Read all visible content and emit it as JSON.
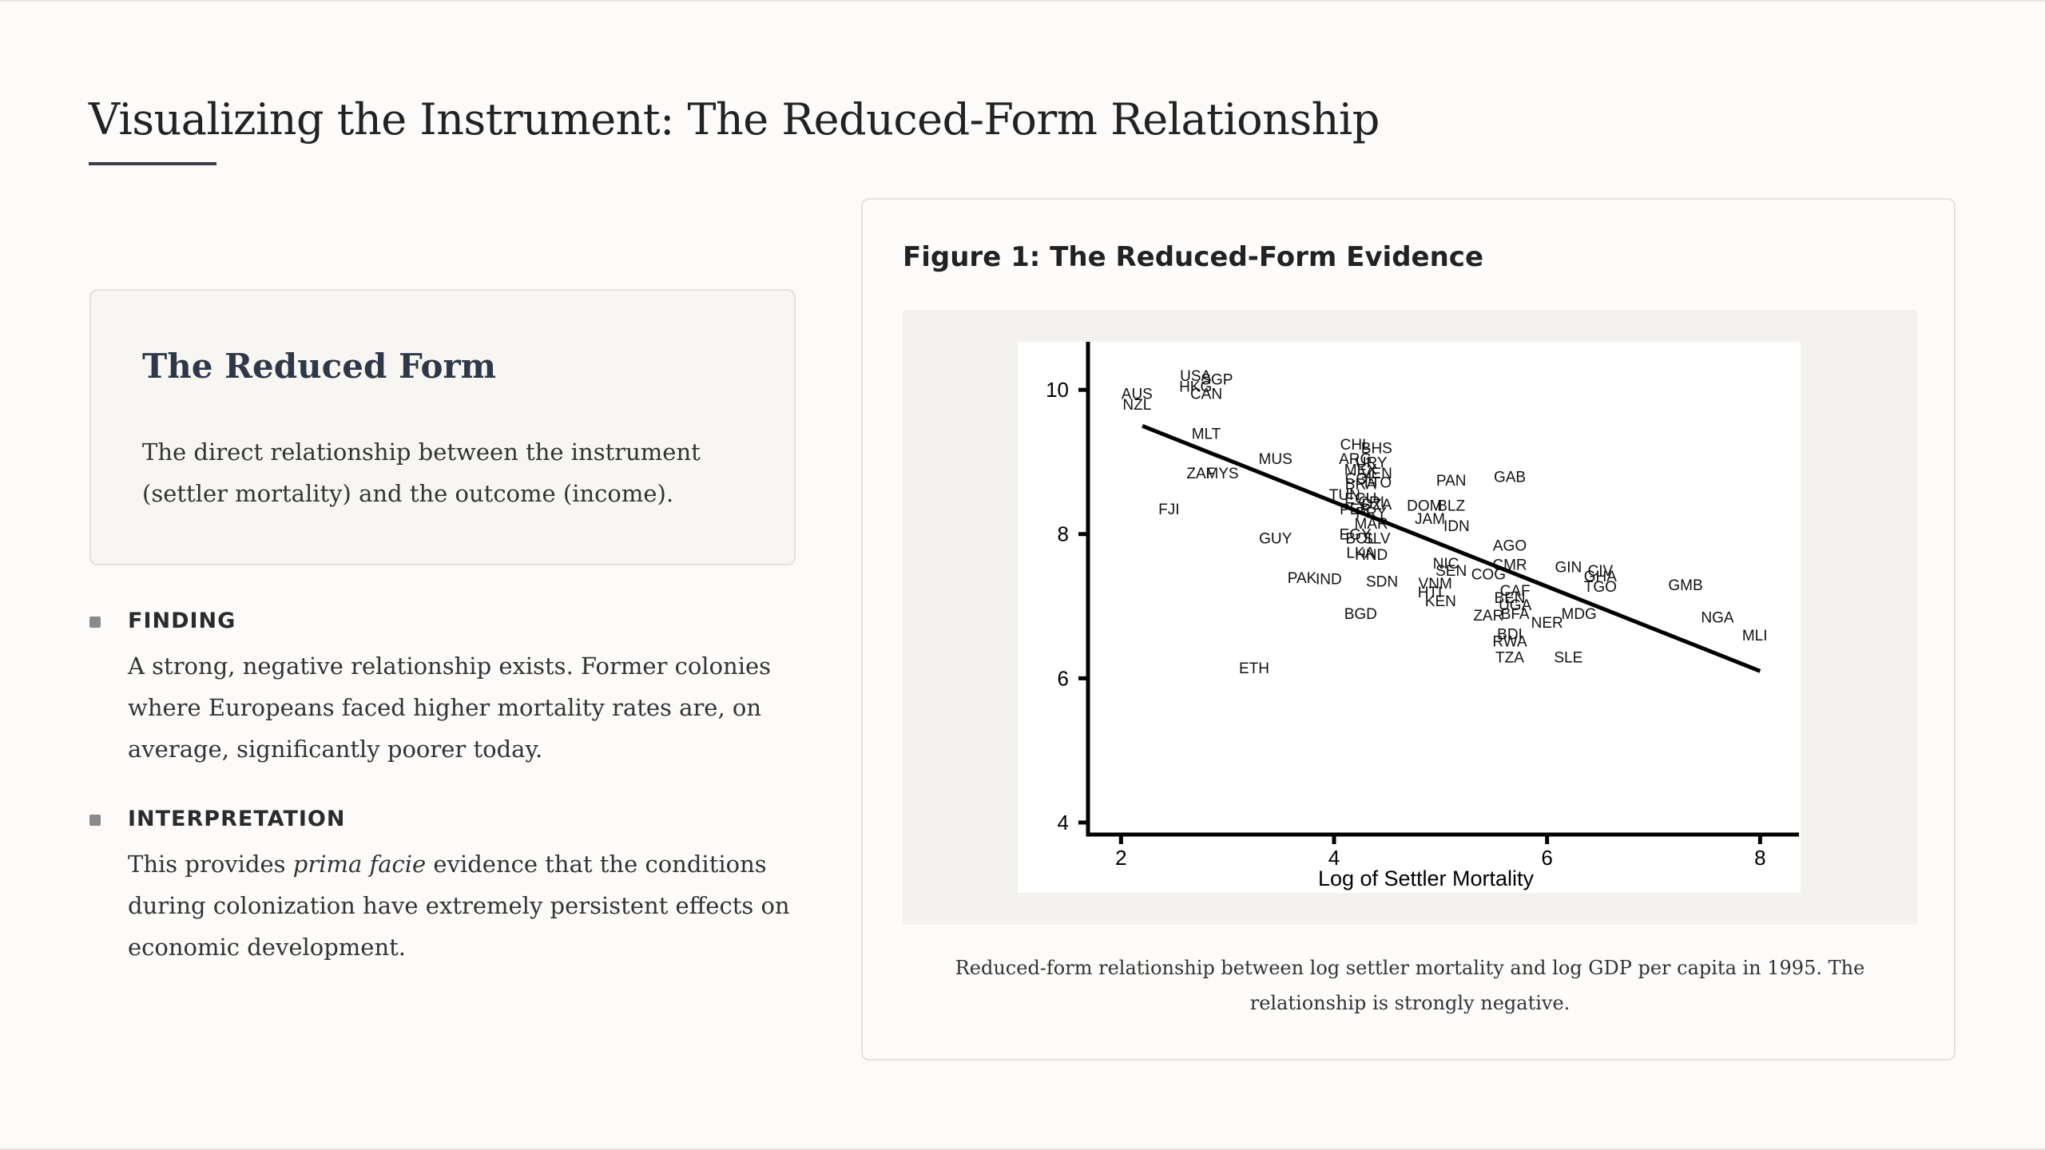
{
  "page": {
    "title": "Visualizing the Instrument: The Reduced-Form Relationship"
  },
  "reduced_form_card": {
    "heading": "The Reduced Form",
    "body": "The direct relationship between the instrument (settler mortality) and the outcome (income)."
  },
  "findings": [
    {
      "heading": "FINDING",
      "body": "A strong, negative relationship exists. Former colonies where Europeans faced higher mortality rates are, on average, significantly poorer today."
    },
    {
      "heading": "INTERPRETATION",
      "body_before": "This provides ",
      "body_emphasis": "prima facie",
      "body_after": " evidence that the conditions during colonization have extremely persistent effects on economic development."
    }
  ],
  "figure": {
    "title": "Figure 1: The Reduced-Form Evidence",
    "caption": "Reduced-form relationship between log settler mortality and log GDP per capita in 1995. The relationship is strongly negative."
  },
  "chart_data": {
    "type": "scatter",
    "title": "",
    "xlabel": "Log of Settler Mortality",
    "ylabel": "",
    "xlim": [
      1.9,
      8.2
    ],
    "ylim": [
      3.8,
      10.5
    ],
    "xticks": [
      2,
      4,
      6,
      8
    ],
    "yticks": [
      4,
      6,
      8,
      10
    ],
    "grid": false,
    "marker": "country-code text labels",
    "fit_line": {
      "x": [
        2.2,
        8.0
      ],
      "y": [
        9.5,
        6.1
      ]
    },
    "points": [
      {
        "label": "USA",
        "x": 2.7,
        "y": 10.2
      },
      {
        "label": "SGP",
        "x": 2.9,
        "y": 10.15
      },
      {
        "label": "HKG",
        "x": 2.7,
        "y": 10.05
      },
      {
        "label": "CAN",
        "x": 2.8,
        "y": 9.95
      },
      {
        "label": "AUS",
        "x": 2.15,
        "y": 9.95
      },
      {
        "label": "NZL",
        "x": 2.15,
        "y": 9.8
      },
      {
        "label": "MLT",
        "x": 2.8,
        "y": 9.4
      },
      {
        "label": "MUS",
        "x": 3.45,
        "y": 9.05
      },
      {
        "label": "ZAF",
        "x": 2.75,
        "y": 8.85
      },
      {
        "label": "MYS",
        "x": 2.95,
        "y": 8.85
      },
      {
        "label": "FJI",
        "x": 2.45,
        "y": 8.35
      },
      {
        "label": "GUY",
        "x": 3.45,
        "y": 7.95
      },
      {
        "label": "CHL",
        "x": 4.2,
        "y": 9.25
      },
      {
        "label": "BHS",
        "x": 4.4,
        "y": 9.2
      },
      {
        "label": "ARG",
        "x": 4.2,
        "y": 9.05
      },
      {
        "label": "URY",
        "x": 4.35,
        "y": 9.0
      },
      {
        "label": "MEX",
        "x": 4.25,
        "y": 8.9
      },
      {
        "label": "VEN",
        "x": 4.4,
        "y": 8.85
      },
      {
        "label": "COL",
        "x": 4.25,
        "y": 8.78
      },
      {
        "label": "BRA",
        "x": 4.25,
        "y": 8.7
      },
      {
        "label": "TTO",
        "x": 4.4,
        "y": 8.72
      },
      {
        "label": "TUN",
        "x": 4.1,
        "y": 8.55
      },
      {
        "label": "ECU",
        "x": 4.25,
        "y": 8.5
      },
      {
        "label": "CRI",
        "x": 4.35,
        "y": 8.45
      },
      {
        "label": "DZA",
        "x": 4.4,
        "y": 8.42
      },
      {
        "label": "PER",
        "x": 4.2,
        "y": 8.35
      },
      {
        "label": "PRY",
        "x": 4.35,
        "y": 8.3
      },
      {
        "label": "MAR",
        "x": 4.35,
        "y": 8.15
      },
      {
        "label": "EGY",
        "x": 4.2,
        "y": 8.0
      },
      {
        "label": "BOL",
        "x": 4.25,
        "y": 7.95
      },
      {
        "label": "SLV",
        "x": 4.4,
        "y": 7.95
      },
      {
        "label": "LKA",
        "x": 4.25,
        "y": 7.75
      },
      {
        "label": "HND",
        "x": 4.35,
        "y": 7.72
      },
      {
        "label": "PAN",
        "x": 5.1,
        "y": 8.75
      },
      {
        "label": "GAB",
        "x": 5.65,
        "y": 8.8
      },
      {
        "label": "DOM",
        "x": 4.85,
        "y": 8.4
      },
      {
        "label": "BLZ",
        "x": 5.1,
        "y": 8.4
      },
      {
        "label": "JAM",
        "x": 4.9,
        "y": 8.22
      },
      {
        "label": "IDN",
        "x": 5.15,
        "y": 8.12
      },
      {
        "label": "AGO",
        "x": 5.65,
        "y": 7.85
      },
      {
        "label": "NIC",
        "x": 5.05,
        "y": 7.6
      },
      {
        "label": "CMR",
        "x": 5.65,
        "y": 7.58
      },
      {
        "label": "SEN",
        "x": 5.1,
        "y": 7.5
      },
      {
        "label": "COG",
        "x": 5.45,
        "y": 7.45
      },
      {
        "label": "GIN",
        "x": 6.2,
        "y": 7.55
      },
      {
        "label": "CIV",
        "x": 6.5,
        "y": 7.5
      },
      {
        "label": "GHA",
        "x": 6.5,
        "y": 7.42
      },
      {
        "label": "TGO",
        "x": 6.5,
        "y": 7.28
      },
      {
        "label": "GMB",
        "x": 7.3,
        "y": 7.3
      },
      {
        "label": "PAK",
        "x": 3.7,
        "y": 7.4
      },
      {
        "label": "IND",
        "x": 3.95,
        "y": 7.38
      },
      {
        "label": "SDN",
        "x": 4.45,
        "y": 7.35
      },
      {
        "label": "VNM",
        "x": 4.95,
        "y": 7.32
      },
      {
        "label": "HTI",
        "x": 4.9,
        "y": 7.2
      },
      {
        "label": "BGD",
        "x": 4.25,
        "y": 6.9
      },
      {
        "label": "CAF",
        "x": 5.7,
        "y": 7.22
      },
      {
        "label": "BEN",
        "x": 5.65,
        "y": 7.12
      },
      {
        "label": "KEN",
        "x": 5.0,
        "y": 7.08
      },
      {
        "label": "UGA",
        "x": 5.7,
        "y": 7.02
      },
      {
        "label": "ZAR",
        "x": 5.45,
        "y": 6.88
      },
      {
        "label": "BFA",
        "x": 5.7,
        "y": 6.9
      },
      {
        "label": "MDG",
        "x": 6.3,
        "y": 6.9
      },
      {
        "label": "NER",
        "x": 6.0,
        "y": 6.78
      },
      {
        "label": "BDI",
        "x": 5.65,
        "y": 6.62
      },
      {
        "label": "RWA",
        "x": 5.65,
        "y": 6.52
      },
      {
        "label": "TZA",
        "x": 5.65,
        "y": 6.3
      },
      {
        "label": "SLE",
        "x": 6.2,
        "y": 6.3
      },
      {
        "label": "NGA",
        "x": 7.6,
        "y": 6.85
      },
      {
        "label": "MLI",
        "x": 7.95,
        "y": 6.6
      },
      {
        "label": "ETH",
        "x": 3.25,
        "y": 6.15
      }
    ]
  }
}
